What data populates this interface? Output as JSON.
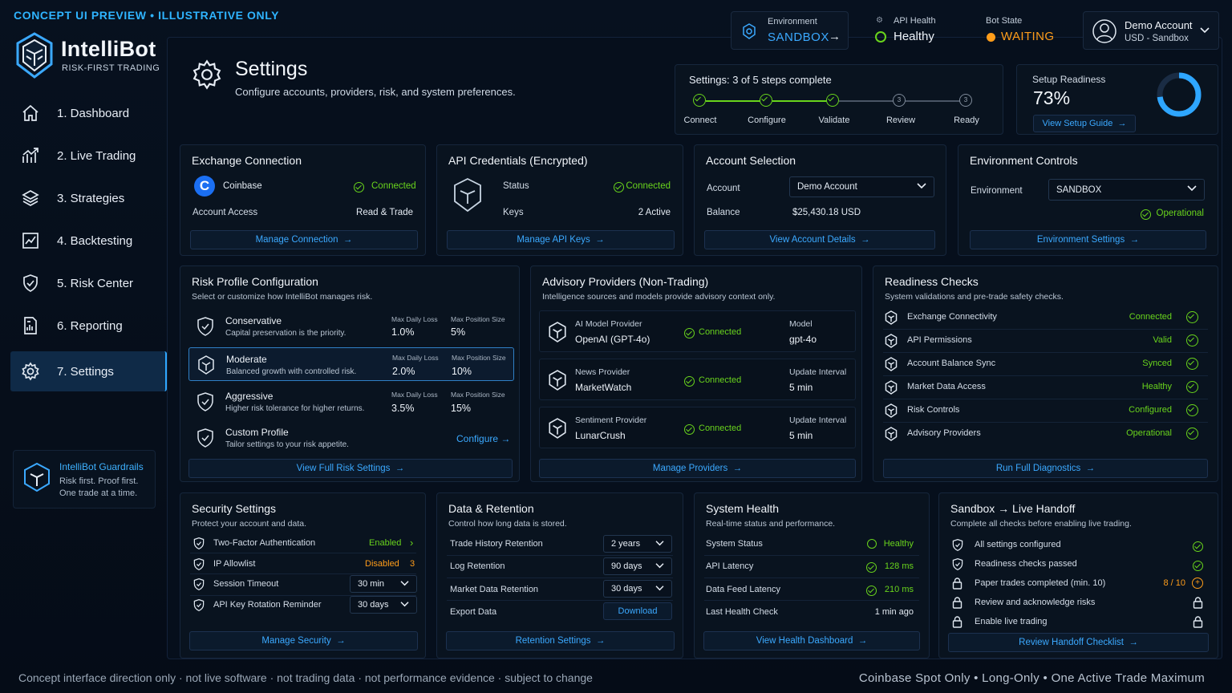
{
  "banner": "CONCEPT UI PREVIEW • ILLUSTRATIVE ONLY",
  "brand": {
    "name": "IntelliBot",
    "tagline": "RISK-FIRST TRADING"
  },
  "nav": [
    {
      "label": "1. Dashboard",
      "icon": "home-icon"
    },
    {
      "label": "2. Live Trading",
      "icon": "chart-line-icon"
    },
    {
      "label": "3. Strategies",
      "icon": "layers-icon"
    },
    {
      "label": "4. Backtesting",
      "icon": "backtest-icon"
    },
    {
      "label": "5. Risk Center",
      "icon": "shield-check-icon"
    },
    {
      "label": "6. Reporting",
      "icon": "report-icon"
    },
    {
      "label": "7. Settings",
      "icon": "gear-icon",
      "active": true
    }
  ],
  "guardrails": {
    "title": "IntelliBot Guardrails",
    "line1": "Risk first. Proof first.",
    "line2": "One trade at a time."
  },
  "header": {
    "environment": {
      "label": "Environment",
      "value": "SANDBOX"
    },
    "api_health": {
      "label": "API Health",
      "value": "Healthy"
    },
    "bot_state": {
      "label": "Bot State",
      "value": "WAITING"
    },
    "account": {
      "name": "Demo Account",
      "detail": "USD - Sandbox"
    }
  },
  "page": {
    "title": "Settings",
    "subtitle": "Configure accounts, providers, risk, and system preferences."
  },
  "progress": {
    "title": "Settings: 3 of 5 steps complete",
    "steps": [
      "Connect",
      "Configure",
      "Validate",
      "Review",
      "Ready"
    ],
    "completed": 3
  },
  "readiness": {
    "label": "Setup Readiness",
    "value": "73%",
    "percent": 73,
    "button": "View Setup Guide"
  },
  "exchange": {
    "title": "Exchange Connection",
    "provider": "Coinbase",
    "status": "Connected",
    "access_label": "Account Access",
    "access_value": "Read & Trade",
    "button": "Manage Connection"
  },
  "api_creds": {
    "title": "API Credentials (Encrypted)",
    "status_label": "Status",
    "status_value": "Connected",
    "keys_label": "Keys",
    "keys_value": "2 Active",
    "button": "Manage API Keys"
  },
  "account_sel": {
    "title": "Account Selection",
    "account_label": "Account",
    "account_value": "Demo Account",
    "balance_label": "Balance",
    "balance_value": "$25,430.18 USD",
    "button": "View Account Details"
  },
  "env_controls": {
    "title": "Environment Controls",
    "env_label": "Environment",
    "env_value": "SANDBOX",
    "status": "Operational",
    "button": "Environment Settings"
  },
  "risk": {
    "title": "Risk Profile Configuration",
    "subtitle": "Select or customize how IntelliBot manages risk.",
    "loss_hdr": "Max Daily Loss",
    "pos_hdr": "Max Position Size",
    "profiles": [
      {
        "name": "Conservative",
        "desc": "Capital preservation is the priority.",
        "loss": "1.0%",
        "pos": "5%"
      },
      {
        "name": "Moderate",
        "desc": "Balanced growth with controlled risk.",
        "loss": "2.0%",
        "pos": "10%"
      },
      {
        "name": "Aggressive",
        "desc": "Higher risk tolerance for higher returns.",
        "loss": "3.5%",
        "pos": "15%"
      },
      {
        "name": "Custom Profile",
        "desc": "Tailor settings to your risk appetite.",
        "action": "Configure"
      }
    ],
    "button": "View Full Risk Settings"
  },
  "advisory": {
    "title": "Advisory Providers (Non-Trading)",
    "subtitle": "Intelligence sources and models provide advisory context only.",
    "providers": [
      {
        "kind": "AI Model Provider",
        "name": "OpenAI (GPT-4o)",
        "status": "Connected",
        "meta_label": "Model",
        "meta_value": "gpt-4o"
      },
      {
        "kind": "News Provider",
        "name": "MarketWatch",
        "status": "Connected",
        "meta_label": "Update Interval",
        "meta_value": "5 min"
      },
      {
        "kind": "Sentiment Provider",
        "name": "LunarCrush",
        "status": "Connected",
        "meta_label": "Update Interval",
        "meta_value": "5 min"
      }
    ],
    "button": "Manage Providers"
  },
  "checks": {
    "title": "Readiness Checks",
    "subtitle": "System validations and pre-trade safety checks.",
    "items": [
      {
        "label": "Exchange Connectivity",
        "value": "Connected"
      },
      {
        "label": "API Permissions",
        "value": "Valid"
      },
      {
        "label": "Account Balance Sync",
        "value": "Synced"
      },
      {
        "label": "Market Data Access",
        "value": "Healthy"
      },
      {
        "label": "Risk Controls",
        "value": "Configured"
      },
      {
        "label": "Advisory Providers",
        "value": "Operational"
      }
    ],
    "button": "Run Full Diagnostics"
  },
  "security": {
    "title": "Security Settings",
    "subtitle": "Protect your account and data.",
    "tfa_label": "Two-Factor Authentication",
    "tfa_value": "Enabled",
    "ip_label": "IP Allowlist",
    "ip_value": "Disabled",
    "ip_count": "3",
    "timeout_label": "Session Timeout",
    "timeout_value": "30 min",
    "rotation_label": "API Key Rotation Reminder",
    "rotation_value": "30 days",
    "button": "Manage Security"
  },
  "data_ret": {
    "title": "Data & Retention",
    "subtitle": "Control how long data is stored.",
    "trade_label": "Trade History Retention",
    "trade_value": "2 years",
    "log_label": "Log Retention",
    "log_value": "90 days",
    "market_label": "Market Data Retention",
    "market_value": "30 days",
    "export_label": "Export Data",
    "export_button": "Download",
    "button": "Retention Settings"
  },
  "sys_health": {
    "title": "System Health",
    "subtitle": "Real-time status and performance.",
    "status_label": "System Status",
    "status_value": "Healthy",
    "api_label": "API Latency",
    "api_value": "128 ms",
    "feed_label": "Data Feed Latency",
    "feed_value": "210 ms",
    "last_label": "Last Health Check",
    "last_value": "1 min ago",
    "button": "View Health Dashboard"
  },
  "handoff": {
    "title": "Sandbox → Live Handoff",
    "subtitle": "Complete all checks before enabling live trading.",
    "items": [
      {
        "label": "All settings configured",
        "state": "done"
      },
      {
        "label": "Readiness checks passed",
        "state": "done"
      },
      {
        "label": "Paper trades completed (min. 10)",
        "state": "progress",
        "value": "8 / 10"
      },
      {
        "label": "Review and acknowledge risks",
        "state": "locked"
      },
      {
        "label": "Enable live trading",
        "state": "locked"
      }
    ],
    "button": "Review Handoff Checklist"
  },
  "footer": {
    "left": "Concept interface direction only  ·  not live software  ·  not trading data  ·  not performance evidence  ·  subject to change",
    "right": "Coinbase Spot Only  •  Long-Only  •  One Active Trade Maximum"
  },
  "colors": {
    "accent": "#3ba9ff",
    "ok": "#69d41c",
    "warn": "#ff9d1a",
    "bg": "#050d18"
  }
}
